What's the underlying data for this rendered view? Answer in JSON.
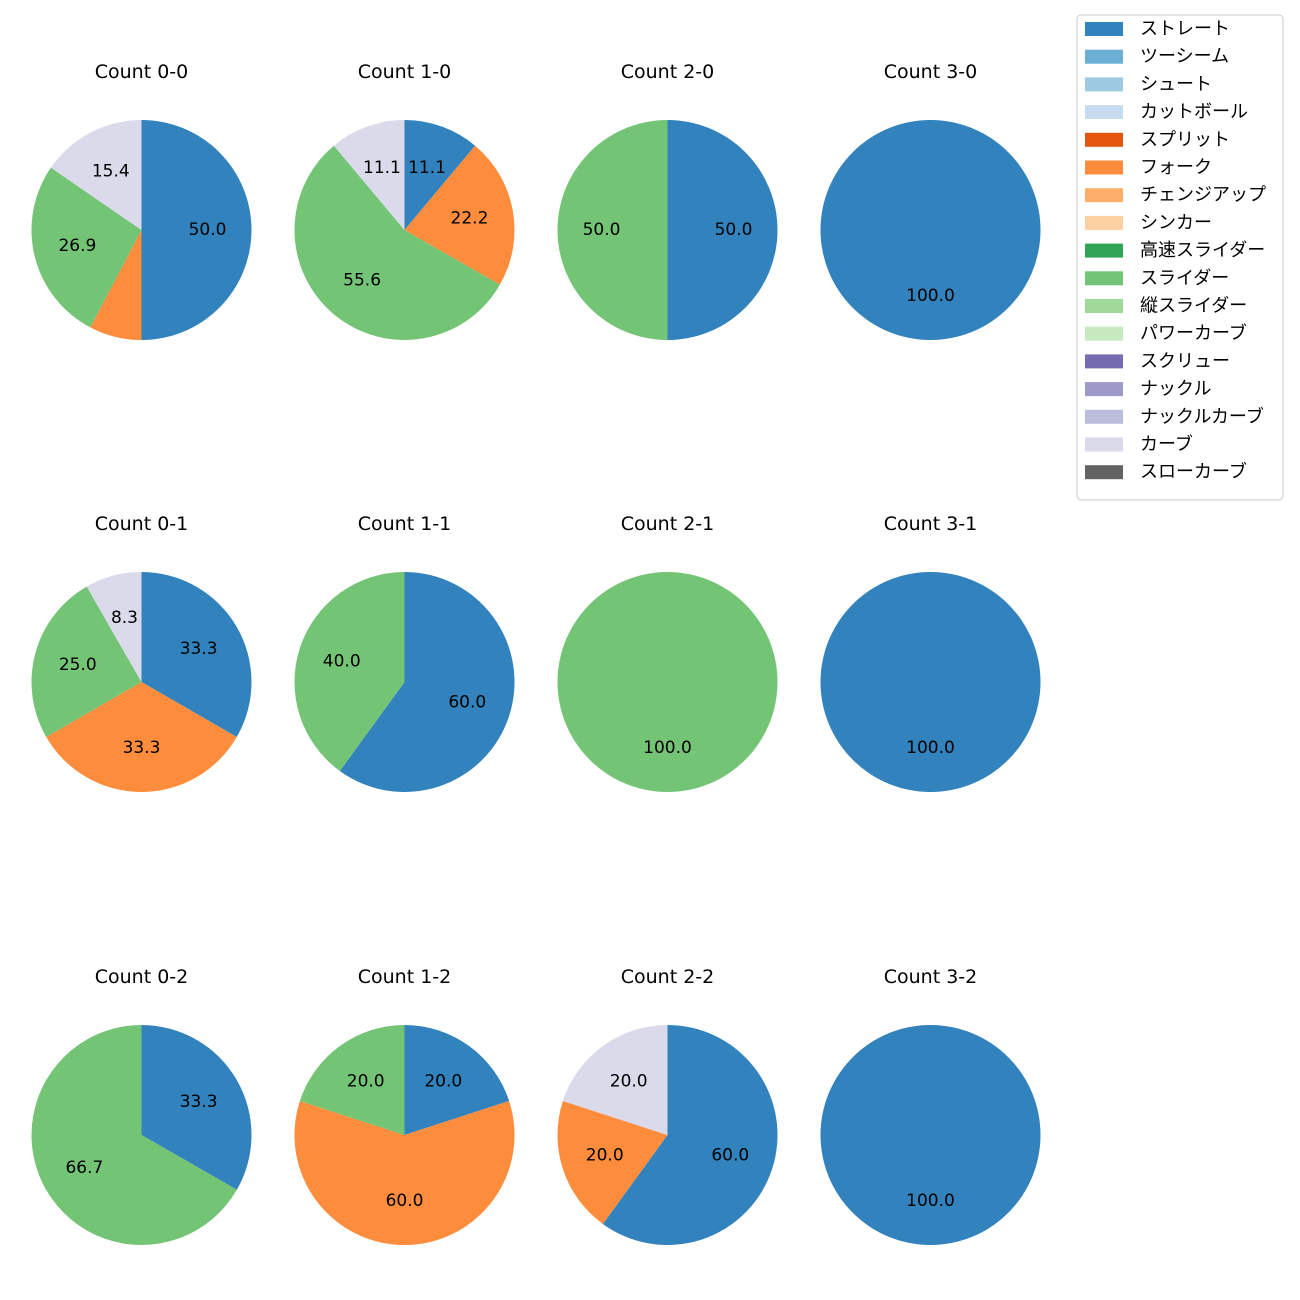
{
  "legend": {
    "entries": [
      {
        "name": "ストレート",
        "color": "#3182bd"
      },
      {
        "name": "ツーシーム",
        "color": "#6baed6"
      },
      {
        "name": "シュート",
        "color": "#9ecae1"
      },
      {
        "name": "カットボール",
        "color": "#c6dbef"
      },
      {
        "name": "スプリット",
        "color": "#e6550d"
      },
      {
        "name": "フォーク",
        "color": "#fd8d3c"
      },
      {
        "name": "チェンジアップ",
        "color": "#fdae6b"
      },
      {
        "name": "シンカー",
        "color": "#fdd0a2"
      },
      {
        "name": "高速スライダー",
        "color": "#31a354"
      },
      {
        "name": "スライダー",
        "color": "#74c476"
      },
      {
        "name": "縦スライダー",
        "color": "#a1d99b"
      },
      {
        "name": "パワーカーブ",
        "color": "#c7e9c0"
      },
      {
        "name": "スクリュー",
        "color": "#756bb1"
      },
      {
        "name": "ナックル",
        "color": "#9e9ac8"
      },
      {
        "name": "ナックルカーブ",
        "color": "#bcbddc"
      },
      {
        "name": "カーブ",
        "color": "#dadaeb"
      },
      {
        "name": "スローカーブ",
        "color": "#636363"
      }
    ]
  },
  "chart_data": [
    {
      "type": "pie",
      "title": "Count 0-0",
      "slices": [
        {
          "pitch": "ストレート",
          "value": 50.0
        },
        {
          "pitch": "フォーク",
          "value": 7.7
        },
        {
          "pitch": "スライダー",
          "value": 26.9
        },
        {
          "pitch": "カーブ",
          "value": 15.4
        }
      ]
    },
    {
      "type": "pie",
      "title": "Count 1-0",
      "slices": [
        {
          "pitch": "ストレート",
          "value": 11.1
        },
        {
          "pitch": "フォーク",
          "value": 22.2
        },
        {
          "pitch": "スライダー",
          "value": 55.6
        },
        {
          "pitch": "カーブ",
          "value": 11.1
        }
      ]
    },
    {
      "type": "pie",
      "title": "Count 2-0",
      "slices": [
        {
          "pitch": "ストレート",
          "value": 50.0
        },
        {
          "pitch": "スライダー",
          "value": 50.0
        }
      ]
    },
    {
      "type": "pie",
      "title": "Count 3-0",
      "slices": [
        {
          "pitch": "ストレート",
          "value": 100.0
        }
      ]
    },
    {
      "type": "pie",
      "title": "Count 0-1",
      "slices": [
        {
          "pitch": "ストレート",
          "value": 33.3
        },
        {
          "pitch": "フォーク",
          "value": 33.3
        },
        {
          "pitch": "スライダー",
          "value": 25.0
        },
        {
          "pitch": "カーブ",
          "value": 8.3
        }
      ]
    },
    {
      "type": "pie",
      "title": "Count 1-1",
      "slices": [
        {
          "pitch": "ストレート",
          "value": 60.0
        },
        {
          "pitch": "スライダー",
          "value": 40.0
        }
      ]
    },
    {
      "type": "pie",
      "title": "Count 2-1",
      "slices": [
        {
          "pitch": "スライダー",
          "value": 100.0
        }
      ]
    },
    {
      "type": "pie",
      "title": "Count 3-1",
      "slices": [
        {
          "pitch": "ストレート",
          "value": 100.0
        }
      ]
    },
    {
      "type": "pie",
      "title": "Count 0-2",
      "slices": [
        {
          "pitch": "ストレート",
          "value": 33.3
        },
        {
          "pitch": "スライダー",
          "value": 66.7
        }
      ]
    },
    {
      "type": "pie",
      "title": "Count 1-2",
      "slices": [
        {
          "pitch": "ストレート",
          "value": 20.0
        },
        {
          "pitch": "フォーク",
          "value": 60.0
        },
        {
          "pitch": "スライダー",
          "value": 20.0
        }
      ]
    },
    {
      "type": "pie",
      "title": "Count 2-2",
      "slices": [
        {
          "pitch": "ストレート",
          "value": 60.0
        },
        {
          "pitch": "フォーク",
          "value": 20.0
        },
        {
          "pitch": "カーブ",
          "value": 20.0
        }
      ]
    },
    {
      "type": "pie",
      "title": "Count 3-2",
      "slices": [
        {
          "pitch": "ストレート",
          "value": 100.0
        }
      ]
    }
  ]
}
